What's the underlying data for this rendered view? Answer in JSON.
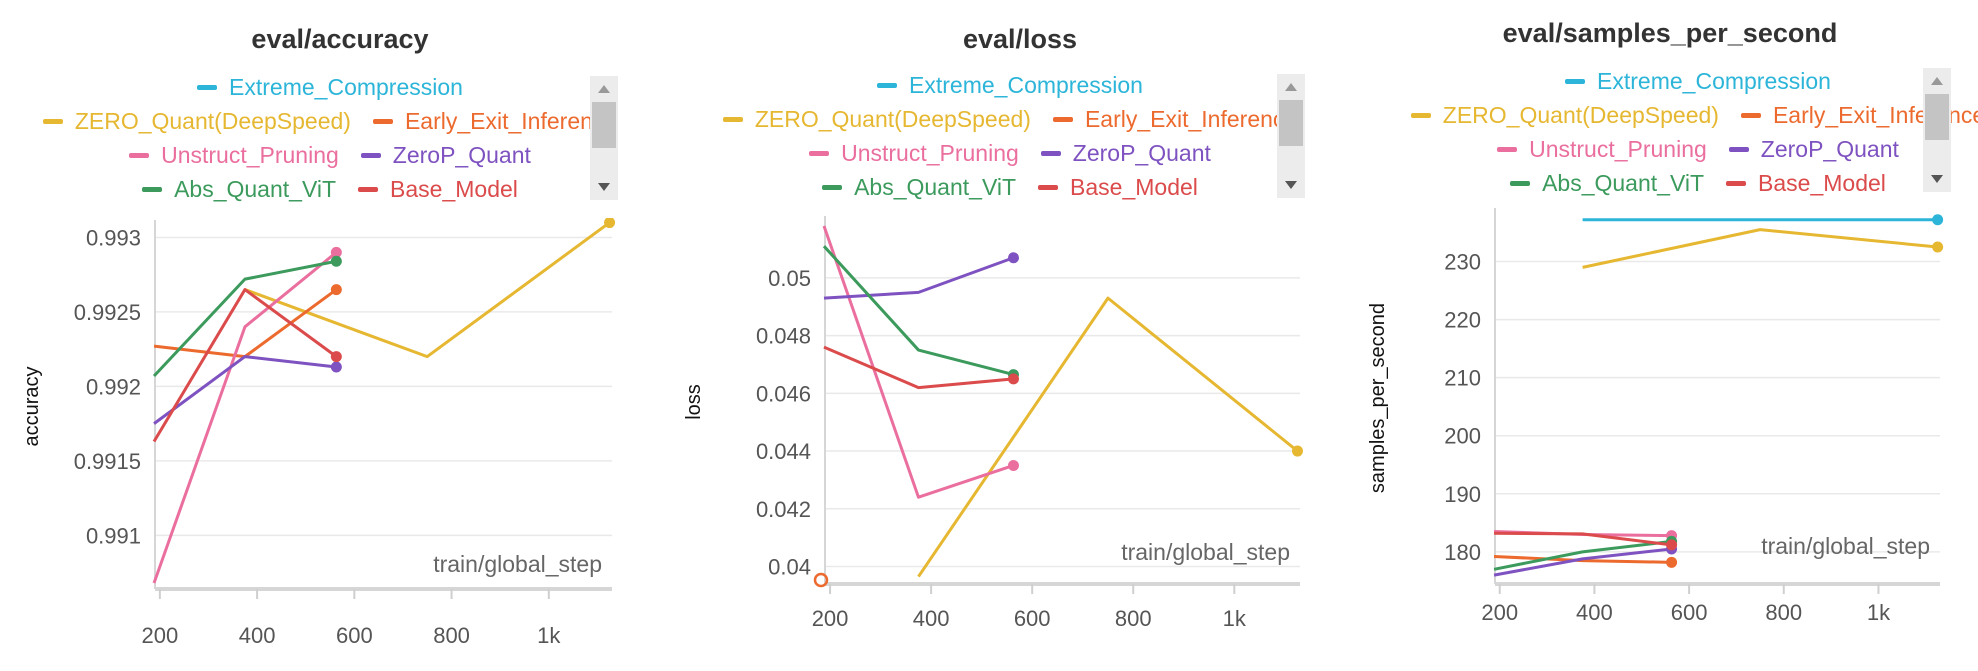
{
  "legend_items": [
    {
      "name": "Extreme_Compression",
      "color": "#2cb5d9"
    },
    {
      "name": "ZERO_Quant(DeepSpeed)",
      "color": "#e6b731"
    },
    {
      "name": "Early_Exit_Inference",
      "color": "#ec6a2e"
    },
    {
      "name": "Unstruct_Pruning",
      "color": "#ea6f9e"
    },
    {
      "name": "ZeroP_Quant",
      "color": "#7e52c0"
    },
    {
      "name": "Abs_Quant_ViT",
      "color": "#3b9a5c"
    },
    {
      "name": "Base_Model",
      "color": "#db4b4b"
    }
  ],
  "chart_data": [
    {
      "type": "line",
      "title": "eval/accuracy",
      "xlabel": "train/global_step",
      "ylabel": "accuracy",
      "xticks": [
        "200",
        "400",
        "600",
        "800",
        "1k"
      ],
      "yticks": [
        "0.991",
        "0.9915",
        "0.992",
        "0.9925",
        "0.993"
      ],
      "xlim": [
        190,
        1130
      ],
      "ylim": [
        0.99068,
        0.99305
      ],
      "series": [
        {
          "name": "ZERO_Quant(DeepSpeed)",
          "x": [
            375,
            750,
            1125
          ],
          "y": [
            0.99265,
            0.9922,
            0.9931
          ]
        },
        {
          "name": "Early_Exit_Inference",
          "x": [
            188,
            375,
            563
          ],
          "y": [
            0.99227,
            0.9922,
            0.99265
          ]
        },
        {
          "name": "Unstruct_Pruning",
          "x": [
            188,
            375,
            563
          ],
          "y": [
            0.99068,
            0.9924,
            0.9929
          ]
        },
        {
          "name": "ZeroP_Quant",
          "x": [
            188,
            375,
            563
          ],
          "y": [
            0.99175,
            0.9922,
            0.99213
          ]
        },
        {
          "name": "Abs_Quant_ViT",
          "x": [
            188,
            375,
            563
          ],
          "y": [
            0.99207,
            0.99272,
            0.99284
          ]
        },
        {
          "name": "Base_Model",
          "x": [
            188,
            375,
            563
          ],
          "y": [
            0.99163,
            0.99265,
            0.9922
          ]
        }
      ]
    },
    {
      "type": "line",
      "title": "eval/loss",
      "xlabel": "train/global_step",
      "ylabel": "loss",
      "xticks": [
        "200",
        "400",
        "600",
        "800",
        "1k"
      ],
      "yticks": [
        "0.04",
        "0.042",
        "0.044",
        "0.046",
        "0.048",
        "0.05"
      ],
      "xlim": [
        190,
        1130
      ],
      "ylim": [
        0.0396,
        0.0518
      ],
      "series": [
        {
          "name": "ZERO_Quant(DeepSpeed)",
          "x": [
            375,
            750,
            1125
          ],
          "y": [
            0.03965,
            0.0493,
            0.044
          ]
        },
        {
          "name": "Unstruct_Pruning",
          "x": [
            188,
            375,
            563
          ],
          "y": [
            0.0518,
            0.0424,
            0.0435
          ]
        },
        {
          "name": "ZeroP_Quant",
          "x": [
            188,
            375,
            563
          ],
          "y": [
            0.0493,
            0.0495,
            0.0507
          ]
        },
        {
          "name": "Abs_Quant_ViT",
          "x": [
            188,
            375,
            563
          ],
          "y": [
            0.0511,
            0.0475,
            0.04665
          ]
        },
        {
          "name": "Base_Model",
          "x": [
            188,
            375,
            563
          ],
          "y": [
            0.0476,
            0.0462,
            0.0465
          ]
        }
      ]
    },
    {
      "type": "line",
      "title": "eval/samples_per_second",
      "xlabel": "train/global_step",
      "ylabel": "samples_per_second",
      "xticks": [
        "200",
        "400",
        "600",
        "800",
        "1k"
      ],
      "yticks": [
        "180",
        "190",
        "200",
        "210",
        "220",
        "230"
      ],
      "xlim": [
        190,
        1130
      ],
      "ylim": [
        175.5,
        237.5
      ],
      "series": [
        {
          "name": "Extreme_Compression",
          "x": [
            375,
            1125
          ],
          "y": [
            237.2,
            237.2
          ]
        },
        {
          "name": "ZERO_Quant(DeepSpeed)",
          "x": [
            375,
            750,
            1125
          ],
          "y": [
            229,
            235.5,
            232.5
          ]
        },
        {
          "name": "Early_Exit_Inference",
          "x": [
            188,
            375,
            563
          ],
          "y": [
            179.2,
            178.5,
            178.2
          ]
        },
        {
          "name": "Unstruct_Pruning",
          "x": [
            188,
            375,
            563
          ],
          "y": [
            183.5,
            183,
            182.8
          ]
        },
        {
          "name": "ZeroP_Quant",
          "x": [
            188,
            375,
            563
          ],
          "y": [
            176,
            178.8,
            180.5
          ]
        },
        {
          "name": "Abs_Quant_ViT",
          "x": [
            188,
            375,
            563
          ],
          "y": [
            177,
            180,
            181.8
          ]
        },
        {
          "name": "Base_Model",
          "x": [
            188,
            375,
            563
          ],
          "y": [
            183.2,
            183.1,
            181.2
          ]
        }
      ]
    }
  ]
}
